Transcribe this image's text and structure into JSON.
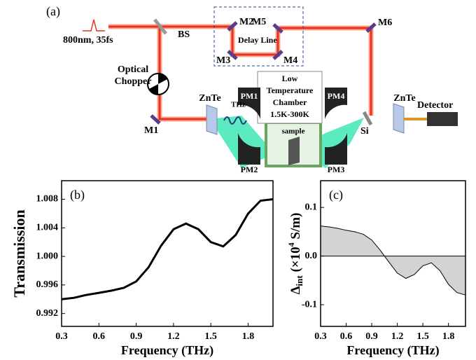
{
  "diagram": {
    "panel_label": "(a)",
    "source": "800nm,  35fs",
    "bs": "BS",
    "m1": "M1",
    "m2": "M2",
    "m3": "M3",
    "m4": "M4",
    "m5": "M5",
    "m6": "M6",
    "delay": "Delay Line",
    "chopper": [
      "Optical",
      "Chopper"
    ],
    "znte1": "ZnTe",
    "thz": "THz",
    "pm1": "PM1",
    "pm2": "PM2",
    "pm3": "PM3",
    "pm4": "PM4",
    "chamber": [
      "Low",
      "Temperature",
      "Chamber",
      "1.5K-300K"
    ],
    "sample": "sample",
    "si": "Si",
    "znte2": "ZnTe",
    "detector": "Detector"
  },
  "chart_data": [
    {
      "type": "line",
      "panel_label": "(b)",
      "x_label": "Frequency (THz)",
      "y_label": "Transmission",
      "x": [
        0.3,
        0.4,
        0.5,
        0.6,
        0.7,
        0.8,
        0.9,
        1.0,
        1.1,
        1.2,
        1.3,
        1.4,
        1.5,
        1.6,
        1.7,
        1.8,
        1.9,
        2.0
      ],
      "series": [
        {
          "color": "#000000",
          "values": [
            0.994,
            0.9942,
            0.9946,
            0.9949,
            0.9952,
            0.9956,
            0.9965,
            0.9985,
            1.0015,
            1.0038,
            1.0046,
            1.0038,
            1.002,
            1.0014,
            1.003,
            1.006,
            1.0078,
            1.008
          ]
        }
      ],
      "xlim": [
        0.3,
        2.0
      ],
      "xticks": [
        0.3,
        0.6,
        0.9,
        1.2,
        1.5,
        1.8
      ],
      "ylim": [
        0.9902,
        1.0106
      ],
      "yticks": [
        0.992,
        0.996,
        {
          "value": 1,
          "label": "1.000"
        },
        1.004,
        1.008
      ]
    },
    {
      "type": "area",
      "panel_label": "(c)",
      "x_label": "Frequency (THz)",
      "y_label": {
        "symbol": "Δ",
        "subscript": "int",
        "open": " (×10",
        "superscript": "4",
        "unit": " S/m)"
      },
      "x": [
        0.3,
        0.4,
        0.5,
        0.6,
        0.7,
        0.8,
        0.9,
        1.0,
        1.1,
        1.2,
        1.3,
        1.4,
        1.5,
        1.6,
        1.7,
        1.8,
        1.9,
        2.0
      ],
      "series": [
        {
          "color": "#000000",
          "fill": "#d3d3d3",
          "values": [
            0.062,
            0.06,
            0.057,
            0.053,
            0.05,
            0.045,
            0.033,
            0.012,
            -0.012,
            -0.035,
            -0.046,
            -0.038,
            -0.02,
            -0.014,
            -0.03,
            -0.058,
            -0.075,
            -0.08
          ]
        }
      ],
      "xlim": [
        0.3,
        2.0
      ],
      "xticks": [
        0.3,
        0.6,
        0.9,
        1.2,
        1.5,
        1.8
      ],
      "ylim": [
        -0.1446,
        0.155
      ],
      "yticks": [
        -0.1,
        {
          "value": 0,
          "label": "0.0"
        },
        0.1
      ],
      "zero_line": true
    }
  ]
}
